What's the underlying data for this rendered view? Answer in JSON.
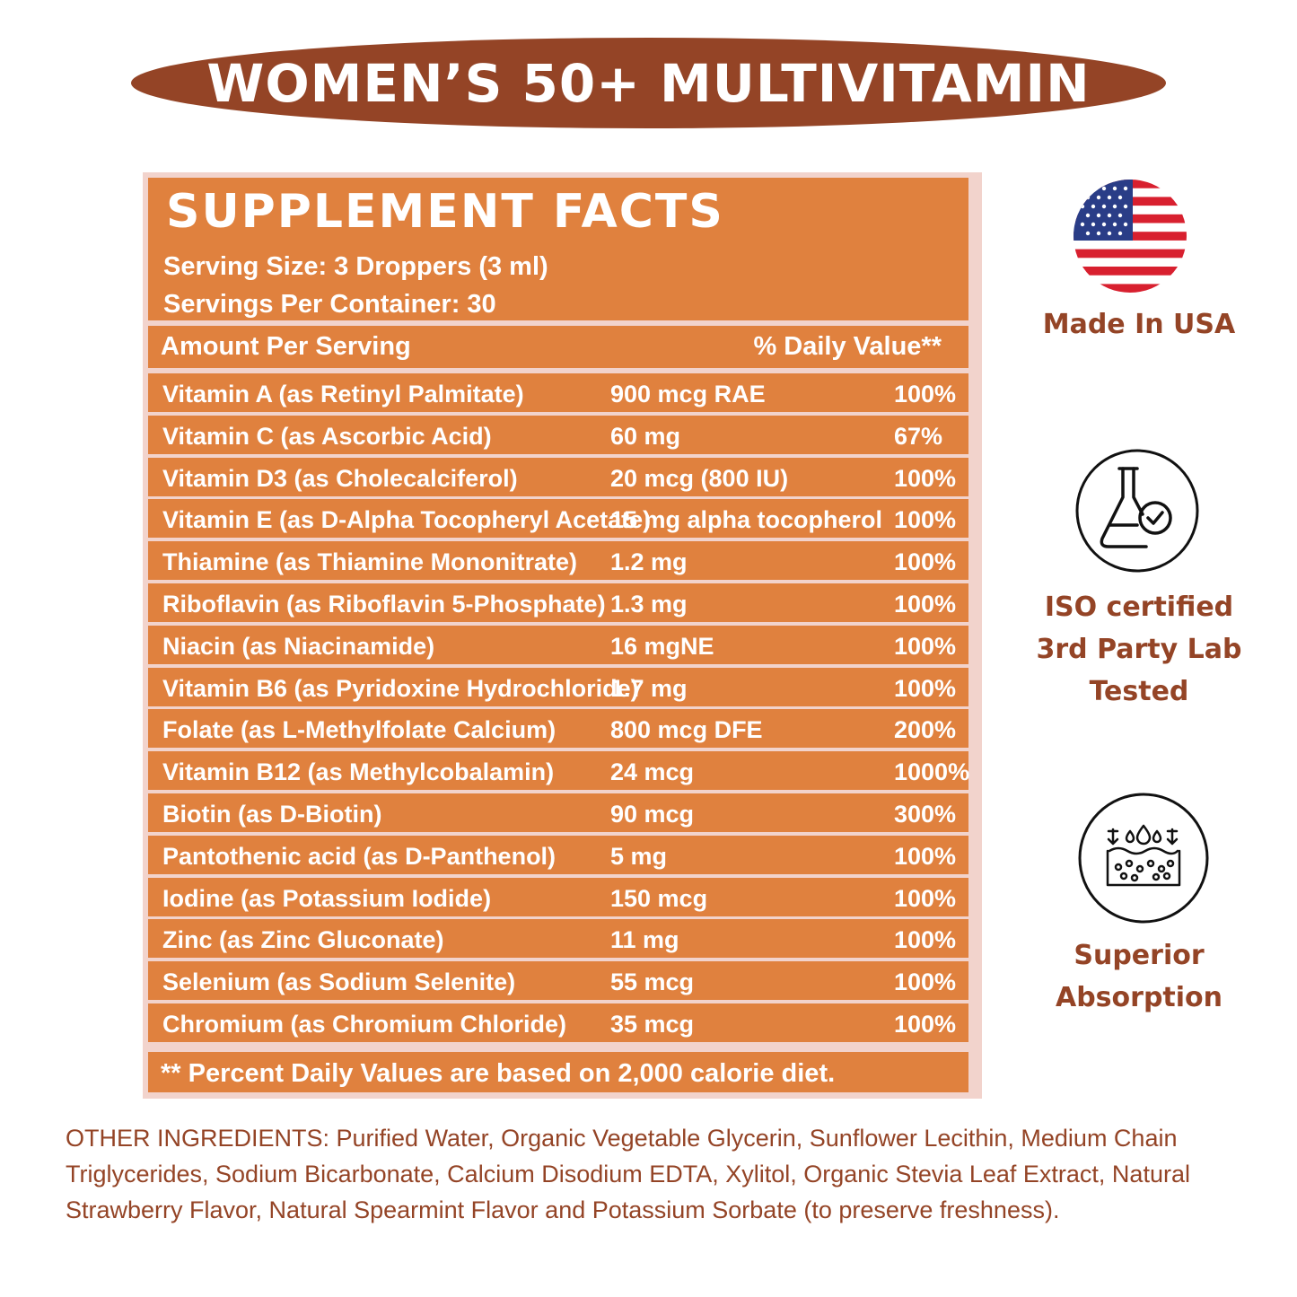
{
  "title": "WOMEN’S 50+ MULTIVITAMIN",
  "facts": {
    "heading": "SUPPLEMENT FACTS",
    "serving_size": "Serving Size: 3 Droppers (3 ml)",
    "servings_per_container": "Servings Per Container: 30",
    "col_amount": "Amount Per Serving",
    "col_dv": "% Daily Value**",
    "rows": [
      {
        "name": "Vitamin A (as Retinyl Palmitate)",
        "amount": "900 mcg RAE",
        "dv": "100%"
      },
      {
        "name": "Vitamin C (as Ascorbic Acid)",
        "amount": "60 mg",
        "dv": "67%"
      },
      {
        "name": "Vitamin D3 (as Cholecalciferol)",
        "amount": "20 mcg (800 IU)",
        "dv": "100%"
      },
      {
        "name": "Vitamin E (as D-Alpha Tocopheryl Acetate)",
        "amount": "15 mg alpha tocopherol",
        "dv": "100%"
      },
      {
        "name": "Thiamine (as Thiamine Mononitrate)",
        "amount": "1.2 mg",
        "dv": "100%"
      },
      {
        "name": "Riboflavin (as Riboflavin 5-Phosphate)",
        "amount": "1.3 mg",
        "dv": "100%"
      },
      {
        "name": "Niacin (as Niacinamide)",
        "amount": "16 mgNE",
        "dv": "100%"
      },
      {
        "name": "Vitamin B6 (as Pyridoxine Hydrochloride)",
        "amount": "1.7 mg",
        "dv": "100%"
      },
      {
        "name": "Folate (as L-Methylfolate Calcium)",
        "amount": "800 mcg DFE",
        "dv": "200%"
      },
      {
        "name": "Vitamin B12 (as Methylcobalamin)",
        "amount": "24 mcg",
        "dv": "1000%"
      },
      {
        "name": "Biotin (as D-Biotin)",
        "amount": "90 mcg",
        "dv": "300%"
      },
      {
        "name": "Pantothenic acid (as D-Panthenol)",
        "amount": "5 mg",
        "dv": "100%"
      },
      {
        "name": "Iodine (as Potassium Iodide)",
        "amount": "150 mcg",
        "dv": "100%"
      },
      {
        "name": "Zinc (as Zinc Gluconate)",
        "amount": "11 mg",
        "dv": "100%"
      },
      {
        "name": "Selenium (as Sodium Selenite)",
        "amount": "55 mcg",
        "dv": "100%"
      },
      {
        "name": "Chromium (as Chromium Chloride)",
        "amount": "35 mcg",
        "dv": "100%"
      }
    ],
    "footnote": "** Percent Daily Values are based on 2,000 calorie diet."
  },
  "badges": [
    {
      "label_lines": [
        "Made In USA"
      ],
      "icon": "us-flag-icon"
    },
    {
      "label_lines": [
        "ISO certified",
        "3rd Party Lab",
        "Tested"
      ],
      "icon": "lab-flask-check-icon"
    },
    {
      "label_lines": [
        "Superior",
        "Absorption"
      ],
      "icon": "skin-absorption-icon"
    }
  ],
  "other_ingredients": "OTHER INGREDIENTS: Purified Water, Organic Vegetable Glycerin, Sunflower Lecithin, Medium Chain Triglycerides, Sodium Bicarbonate, Calcium Disodium EDTA, Xylitol, Organic Stevia Leaf Extract, Natural Strawberry Flavor, Natural Spearmint Flavor and Potassium Sorbate (to preserve freshness).",
  "colors": {
    "brand_brown": "#944426",
    "panel_orange": "#e0813e",
    "panel_border": "#f2d3cc"
  }
}
